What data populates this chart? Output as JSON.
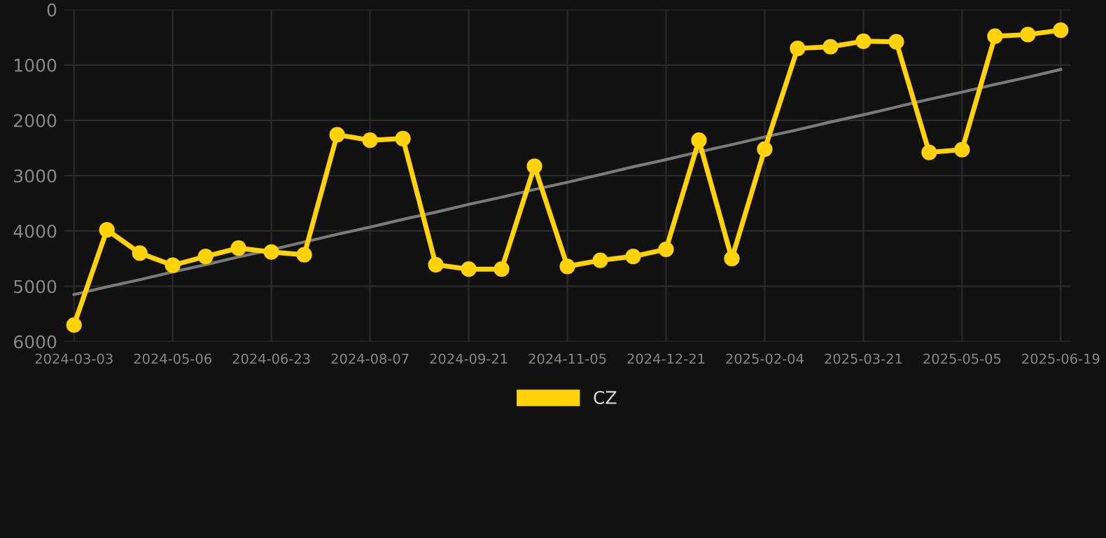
{
  "chart_data": {
    "type": "line",
    "categories": [
      "2024-03-03",
      null,
      null,
      "2024-05-06",
      null,
      null,
      "2024-06-23",
      null,
      null,
      "2024-08-07",
      null,
      null,
      "2024-09-21",
      null,
      null,
      "2024-11-05",
      null,
      null,
      "2024-12-21",
      null,
      null,
      "2025-02-04",
      null,
      null,
      "2025-03-21",
      null,
      null,
      "2025-05-05",
      null,
      null,
      "2025-06-19"
    ],
    "series": [
      {
        "name": "CZ",
        "color": "#ffd20a",
        "marker": "circle",
        "values": [
          5700,
          3980,
          4400,
          4620,
          4460,
          4310,
          4380,
          4430,
          2260,
          2360,
          2330,
          4610,
          4690,
          4690,
          2830,
          4640,
          4530,
          4460,
          4330,
          2360,
          4500,
          2520,
          700,
          670,
          570,
          580,
          2580,
          2530,
          480,
          450,
          370
        ]
      },
      {
        "color": "#7a7a7a",
        "marker": "none",
        "values": [
          5150,
          5010,
          4880,
          4740,
          4610,
          4470,
          4340,
          4200,
          4060,
          3930,
          3790,
          3660,
          3520,
          3390,
          3250,
          3120,
          2980,
          2840,
          2710,
          2570,
          2440,
          2300,
          2170,
          2030,
          1900,
          1760,
          1620,
          1490,
          1350,
          1220,
          1080
        ]
      }
    ],
    "ylim": [
      6000,
      0
    ],
    "yticks": [
      0,
      1000,
      2000,
      3000,
      4000,
      5000,
      6000
    ],
    "grid": true,
    "legend": "bottom",
    "line_style": "solid"
  }
}
